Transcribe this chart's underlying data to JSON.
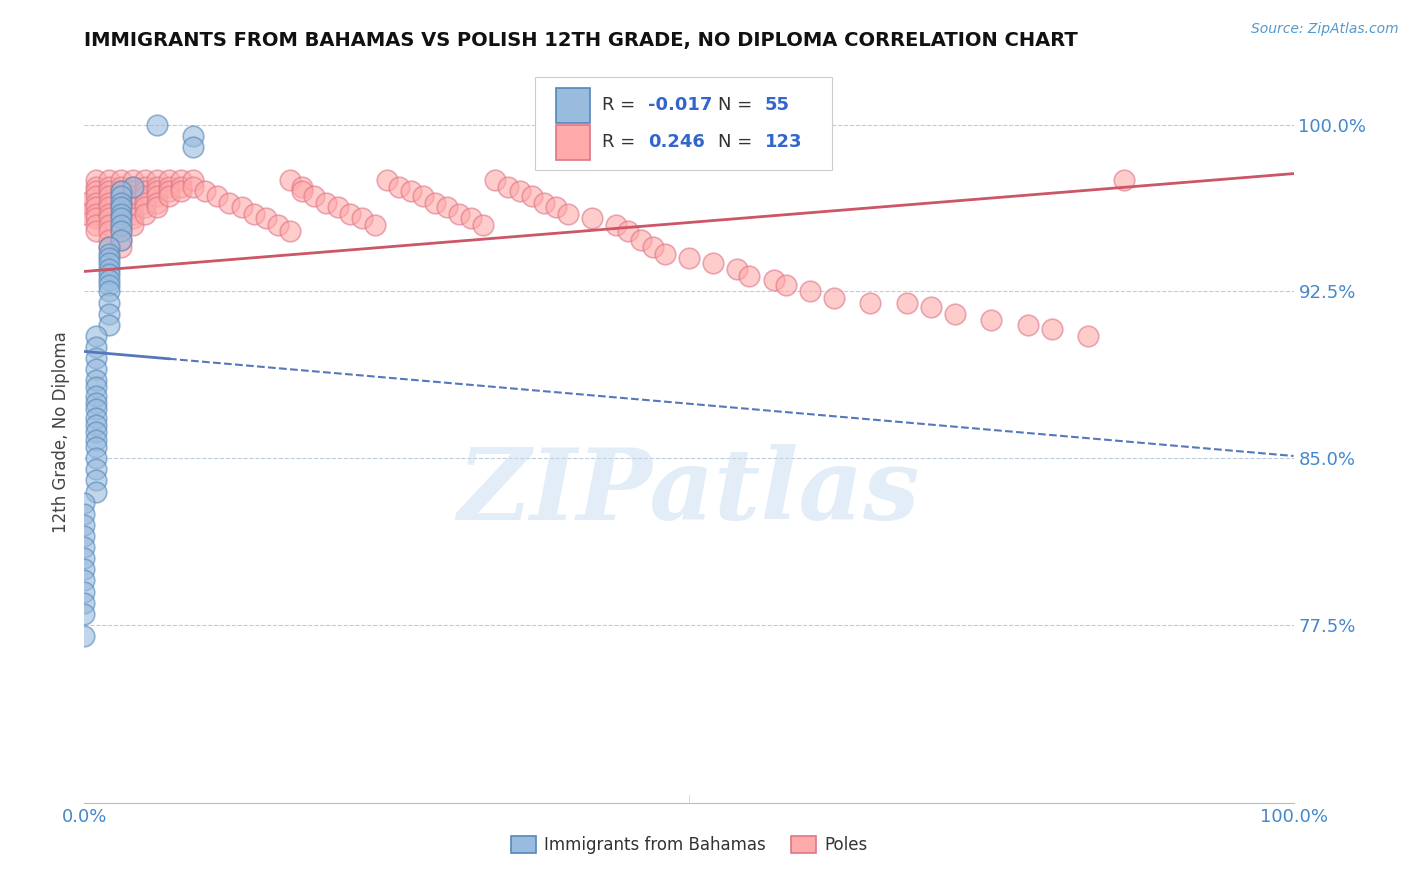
{
  "title": "IMMIGRANTS FROM BAHAMAS VS POLISH 12TH GRADE, NO DIPLOMA CORRELATION CHART",
  "source": "Source: ZipAtlas.com",
  "ylabel": "12th Grade, No Diploma",
  "yticks": [
    0.775,
    0.85,
    0.925,
    1.0
  ],
  "ytick_labels": [
    "77.5%",
    "85.0%",
    "92.5%",
    "100.0%"
  ],
  "xlim": [
    0.0,
    1.0
  ],
  "ylim": [
    0.695,
    1.028
  ],
  "legend_r_blue": "-0.017",
  "legend_n_blue": "55",
  "legend_r_pink": "0.246",
  "legend_n_pink": "123",
  "legend_label_blue": "Immigrants from Bahamas",
  "legend_label_pink": "Poles",
  "blue_color": "#99BBDD",
  "pink_color": "#FFAAAA",
  "blue_edge_color": "#5588BB",
  "pink_edge_color": "#DD7788",
  "blue_line_color": "#5577BB",
  "pink_line_color": "#CC5566",
  "watermark": "ZIPatlas",
  "blue_scatter_x": [
    0.06,
    0.09,
    0.09,
    0.04,
    0.03,
    0.03,
    0.03,
    0.03,
    0.03,
    0.03,
    0.03,
    0.03,
    0.03,
    0.02,
    0.02,
    0.02,
    0.02,
    0.02,
    0.02,
    0.02,
    0.02,
    0.02,
    0.02,
    0.02,
    0.02,
    0.01,
    0.01,
    0.01,
    0.01,
    0.01,
    0.01,
    0.01,
    0.01,
    0.01,
    0.01,
    0.01,
    0.01,
    0.01,
    0.01,
    0.01,
    0.01,
    0.01,
    0.01,
    0.0,
    0.0,
    0.0,
    0.0,
    0.0,
    0.0,
    0.0,
    0.0,
    0.0,
    0.0,
    0.0,
    0.0
  ],
  "blue_scatter_y": [
    1.0,
    0.995,
    0.99,
    0.972,
    0.97,
    0.968,
    0.965,
    0.963,
    0.96,
    0.958,
    0.955,
    0.952,
    0.948,
    0.945,
    0.942,
    0.94,
    0.938,
    0.935,
    0.933,
    0.93,
    0.928,
    0.925,
    0.92,
    0.915,
    0.91,
    0.905,
    0.9,
    0.895,
    0.89,
    0.885,
    0.882,
    0.878,
    0.875,
    0.872,
    0.868,
    0.865,
    0.862,
    0.858,
    0.855,
    0.85,
    0.845,
    0.84,
    0.835,
    0.83,
    0.825,
    0.82,
    0.815,
    0.81,
    0.805,
    0.8,
    0.795,
    0.79,
    0.785,
    0.78,
    0.77
  ],
  "pink_scatter_x": [
    0.0,
    0.0,
    0.01,
    0.01,
    0.01,
    0.01,
    0.01,
    0.01,
    0.01,
    0.01,
    0.01,
    0.01,
    0.02,
    0.02,
    0.02,
    0.02,
    0.02,
    0.02,
    0.02,
    0.02,
    0.02,
    0.02,
    0.02,
    0.02,
    0.03,
    0.03,
    0.03,
    0.03,
    0.03,
    0.03,
    0.03,
    0.03,
    0.03,
    0.03,
    0.03,
    0.03,
    0.04,
    0.04,
    0.04,
    0.04,
    0.04,
    0.04,
    0.04,
    0.04,
    0.04,
    0.05,
    0.05,
    0.05,
    0.05,
    0.05,
    0.05,
    0.05,
    0.06,
    0.06,
    0.06,
    0.06,
    0.06,
    0.06,
    0.07,
    0.07,
    0.07,
    0.07,
    0.08,
    0.08,
    0.08,
    0.09,
    0.09,
    0.1,
    0.11,
    0.12,
    0.13,
    0.14,
    0.15,
    0.16,
    0.17,
    0.17,
    0.18,
    0.18,
    0.19,
    0.2,
    0.21,
    0.22,
    0.23,
    0.24,
    0.25,
    0.26,
    0.27,
    0.28,
    0.29,
    0.3,
    0.31,
    0.32,
    0.33,
    0.34,
    0.35,
    0.36,
    0.37,
    0.38,
    0.39,
    0.4,
    0.42,
    0.44,
    0.45,
    0.46,
    0.47,
    0.48,
    0.5,
    0.52,
    0.54,
    0.55,
    0.57,
    0.58,
    0.6,
    0.62,
    0.65,
    0.68,
    0.7,
    0.72,
    0.75,
    0.78,
    0.8,
    0.83,
    0.86
  ],
  "pink_scatter_y": [
    0.965,
    0.96,
    0.975,
    0.972,
    0.97,
    0.968,
    0.965,
    0.963,
    0.96,
    0.958,
    0.955,
    0.952,
    0.975,
    0.972,
    0.97,
    0.968,
    0.965,
    0.963,
    0.96,
    0.958,
    0.955,
    0.952,
    0.948,
    0.945,
    0.975,
    0.972,
    0.97,
    0.968,
    0.965,
    0.963,
    0.96,
    0.958,
    0.955,
    0.952,
    0.948,
    0.945,
    0.975,
    0.972,
    0.97,
    0.968,
    0.965,
    0.963,
    0.96,
    0.958,
    0.955,
    0.975,
    0.972,
    0.97,
    0.968,
    0.965,
    0.963,
    0.96,
    0.975,
    0.972,
    0.97,
    0.968,
    0.965,
    0.963,
    0.975,
    0.972,
    0.97,
    0.968,
    0.975,
    0.972,
    0.97,
    0.975,
    0.972,
    0.97,
    0.968,
    0.965,
    0.963,
    0.96,
    0.958,
    0.955,
    0.952,
    0.975,
    0.972,
    0.97,
    0.968,
    0.965,
    0.963,
    0.96,
    0.958,
    0.955,
    0.975,
    0.972,
    0.97,
    0.968,
    0.965,
    0.963,
    0.96,
    0.958,
    0.955,
    0.975,
    0.972,
    0.97,
    0.968,
    0.965,
    0.963,
    0.96,
    0.958,
    0.955,
    0.952,
    0.948,
    0.945,
    0.942,
    0.94,
    0.938,
    0.935,
    0.932,
    0.93,
    0.928,
    0.925,
    0.922,
    0.92,
    0.92,
    0.918,
    0.915,
    0.912,
    0.91,
    0.908,
    0.905,
    0.975
  ],
  "blue_trend_y_start": 0.898,
  "blue_trend_y_end": 0.851,
  "pink_trend_y_start": 0.934,
  "pink_trend_y_end": 0.978
}
